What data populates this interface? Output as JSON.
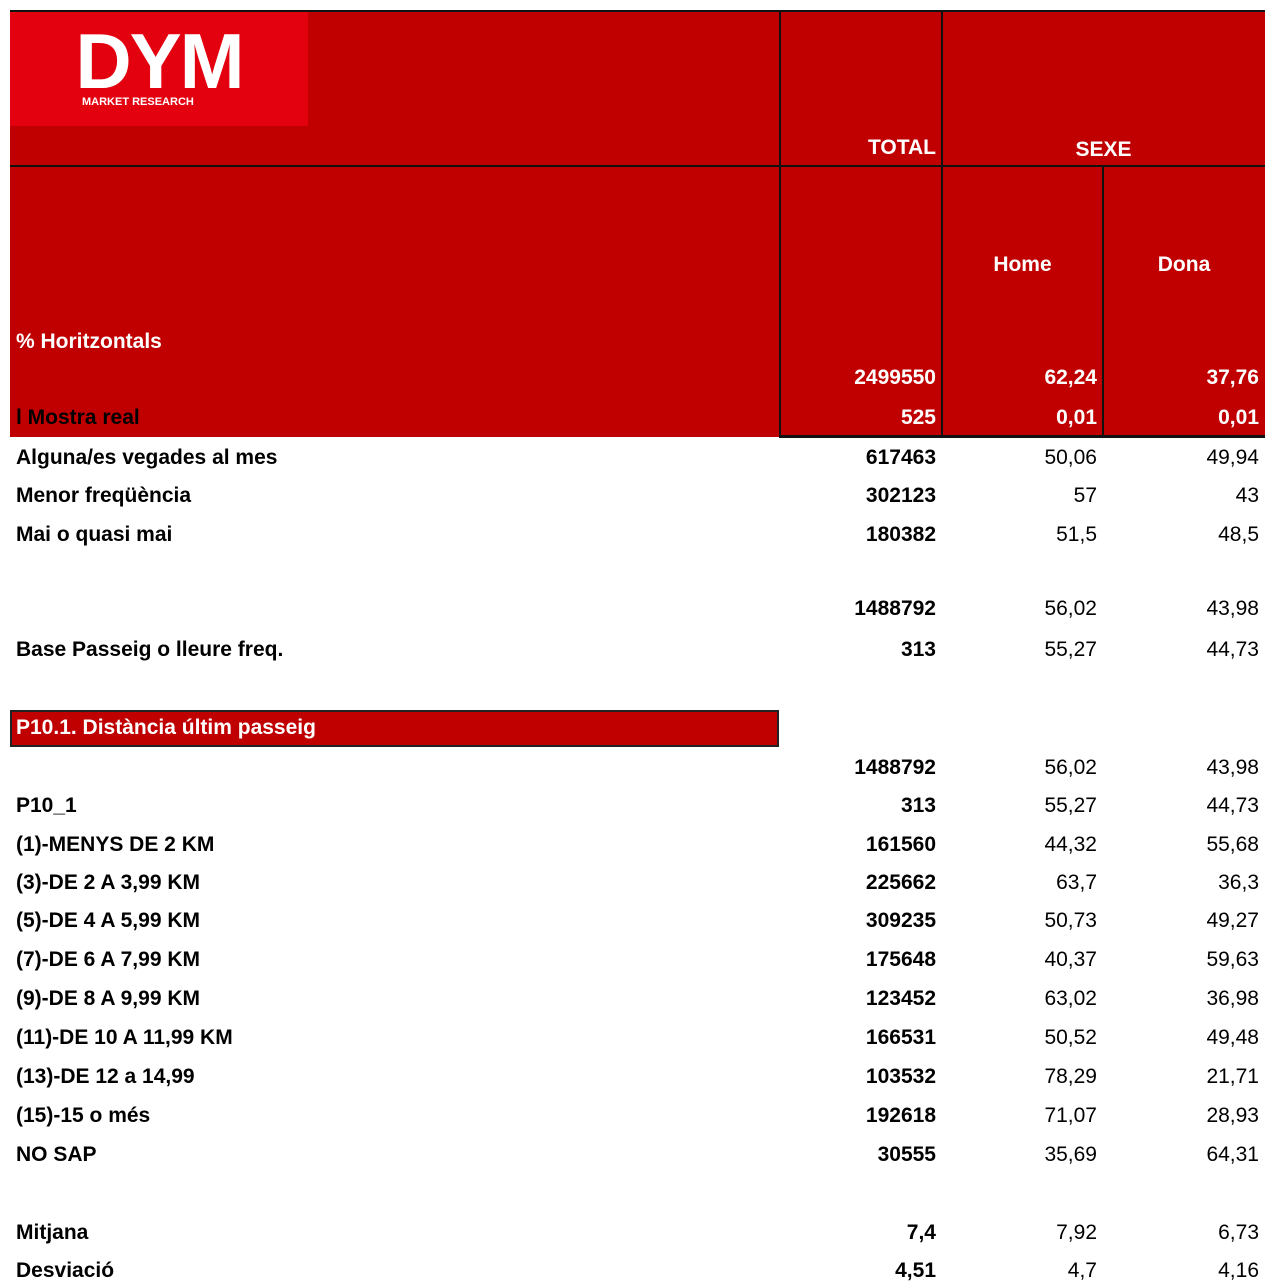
{
  "header": {
    "logo": {
      "name": "DYM",
      "tagline": "MARKET RESEARCH"
    },
    "total": "TOTAL",
    "group": "SEXE",
    "subcolumns": [
      "Home",
      "Dona"
    ],
    "corner": "% Horitzontals",
    "rows": [
      {
        "values": [
          "2499550",
          "62,24",
          "37,76"
        ]
      },
      {
        "label": "l Mostra real",
        "values": [
          "525",
          "0,01",
          "0,01"
        ]
      }
    ]
  },
  "table": {
    "rows": [
      {
        "label": "Alguna/es vegades al mes",
        "values": [
          "617463",
          "50,06",
          "49,94"
        ]
      },
      {
        "label": "Menor freqüència",
        "values": [
          "302123",
          "57",
          "43"
        ]
      },
      {
        "label": "Mai o quasi mai",
        "values": [
          "180382",
          "51,5",
          "48,5"
        ]
      },
      {
        "values": [
          "1488792",
          "56,02",
          "43,98"
        ]
      },
      {
        "label": "Base Passeig o lleure freq.",
        "values": [
          "313",
          "55,27",
          "44,73"
        ]
      }
    ],
    "section": {
      "title": "P10.1. Distància últim passeig",
      "rows": [
        {
          "values": [
            "1488792",
            "56,02",
            "43,98"
          ]
        },
        {
          "label": "P10_1",
          "values": [
            "313",
            "55,27",
            "44,73"
          ]
        },
        {
          "label": "(1)-MENYS DE 2 KM",
          "values": [
            "161560",
            "44,32",
            "55,68"
          ]
        },
        {
          "label": "(3)-DE 2 A 3,99 KM",
          "values": [
            "225662",
            "63,7",
            "36,3"
          ]
        },
        {
          "label": "(5)-DE 4 A 5,99 KM",
          "values": [
            "309235",
            "50,73",
            "49,27"
          ]
        },
        {
          "label": "(7)-DE 6 A 7,99 KM",
          "values": [
            "175648",
            "40,37",
            "59,63"
          ]
        },
        {
          "label": "(9)-DE 8 A 9,99 KM",
          "values": [
            "123452",
            "63,02",
            "36,98"
          ]
        },
        {
          "label": "(11)-DE 10 A 11,99 KM",
          "values": [
            "166531",
            "50,52",
            "49,48"
          ]
        },
        {
          "label": "(13)-DE 12 a 14,99",
          "values": [
            "103532",
            "78,29",
            "21,71"
          ]
        },
        {
          "label": "(15)-15 o més",
          "values": [
            "192618",
            "71,07",
            "28,93"
          ]
        },
        {
          "label": "NO SAP",
          "values": [
            "30555",
            "35,69",
            "64,31"
          ]
        },
        {
          "label": "Mitjana",
          "values": [
            "7,4",
            "7,92",
            "6,73"
          ]
        },
        {
          "label": "Desviació",
          "values": [
            "4,51",
            "4,7",
            "4,16"
          ]
        }
      ]
    }
  }
}
